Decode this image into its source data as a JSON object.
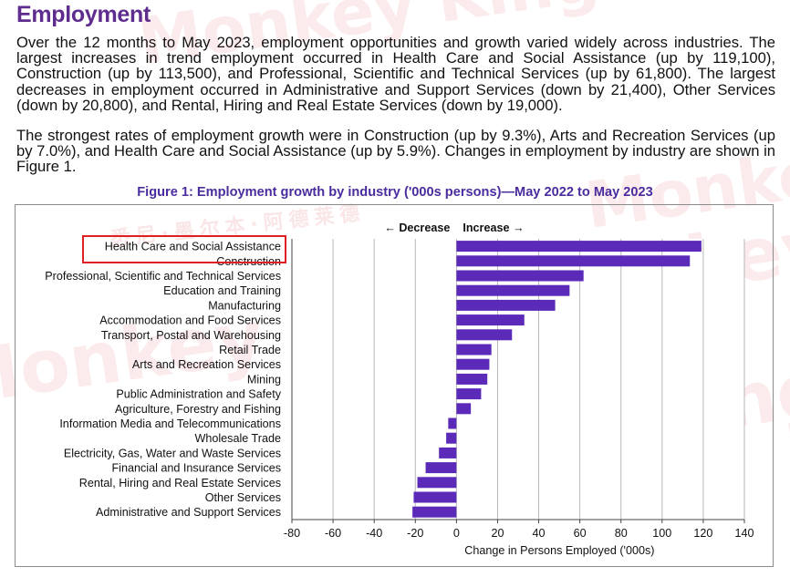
{
  "page": {
    "title": "Employment",
    "paragraphs": [
      "Over the 12 months to May 2023, employment opportunities and growth varied widely across industries. The largest increases in trend employment occurred in Health Care and Social Assistance (up by 119,100), Construction (up by 113,500), and Professional, Scientific and Technical Services (up by 61,800). The largest decreases in employment occurred in Administrative and Support Services (down by 21,400), Other Services (down by 20,800), and Rental, Hiring and Real Estate Services (down by 19,000).",
      "The strongest rates of employment growth were in Construction (up by 9.3%), Arts and Recreation Services (up by 7.0%), and Health Care and Social Assistance (up by 5.9%). Changes in employment by industry are shown in Figure 1."
    ],
    "figure_caption": "Figure 1: Employment growth by industry ('000s persons)—May 2022 to May 2023",
    "watermark_text": "Monkey King",
    "watermark_cn": "悉尼·墨尔本·阿德莱德",
    "watermark_cn2": "移民留学"
  },
  "chart_data": {
    "type": "bar",
    "orientation": "horizontal",
    "categories": [
      "Health Care and Social Assistance",
      "Construction",
      "Professional, Scientific and Technical Services",
      "Education and Training",
      "Manufacturing",
      "Accommodation and Food Services",
      "Transport, Postal and Warehousing",
      "Retail Trade",
      "Arts and Recreation Services",
      "Mining",
      "Public Administration and Safety",
      "Agriculture, Forestry and Fishing",
      "Information Media and Telecommunications",
      "Wholesale Trade",
      "Electricity, Gas, Water and Waste Services",
      "Financial and Insurance Services",
      "Rental, Hiring and Real Estate Services",
      "Other Services",
      "Administrative and Support Services"
    ],
    "values": [
      119.1,
      113.5,
      61.8,
      55,
      48,
      33,
      27,
      17,
      16,
      15,
      12,
      7,
      -4,
      -5,
      -8.5,
      -15,
      -19.0,
      -20.8,
      -21.4
    ],
    "xlabel": "Change in Persons Employed ('000s)",
    "xlim": [
      -80,
      140
    ],
    "xticks": [
      -80,
      -60,
      -40,
      -20,
      0,
      20,
      40,
      60,
      80,
      100,
      120,
      140
    ],
    "direction_labels": {
      "decrease": "Decrease",
      "increase": "Increase"
    },
    "grid": "vertical",
    "bar_color": "#5b2ab8",
    "highlighted_categories": [
      "Health Care and Social Assistance",
      "Construction"
    ],
    "highlight_color": "#e02020"
  }
}
